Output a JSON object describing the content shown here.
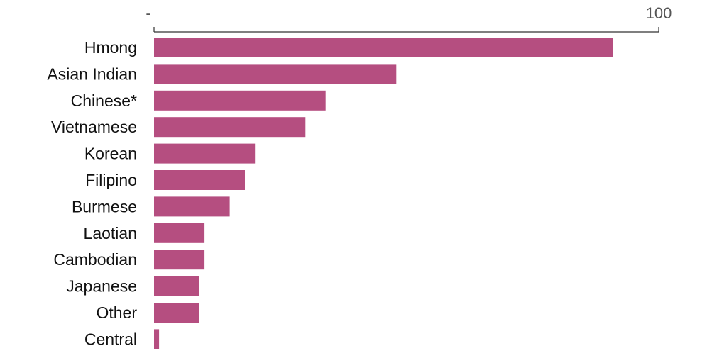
{
  "chart_data": {
    "type": "bar",
    "orientation": "horizontal",
    "categories": [
      "Hmong",
      "Asian Indian",
      "Chinese*",
      "Vietnamese",
      "Korean",
      "Filipino",
      "Burmese",
      "Laotian",
      "Cambodian",
      "Japanese",
      "Other",
      "Central"
    ],
    "values": [
      91,
      48,
      34,
      30,
      20,
      18,
      15,
      10,
      10,
      9,
      9,
      1
    ],
    "xlim": [
      0,
      100
    ],
    "x_ticks": [
      "-",
      "100"
    ],
    "grid": false,
    "colors": {
      "bar": "#b54e80",
      "axis": "#333333"
    }
  }
}
